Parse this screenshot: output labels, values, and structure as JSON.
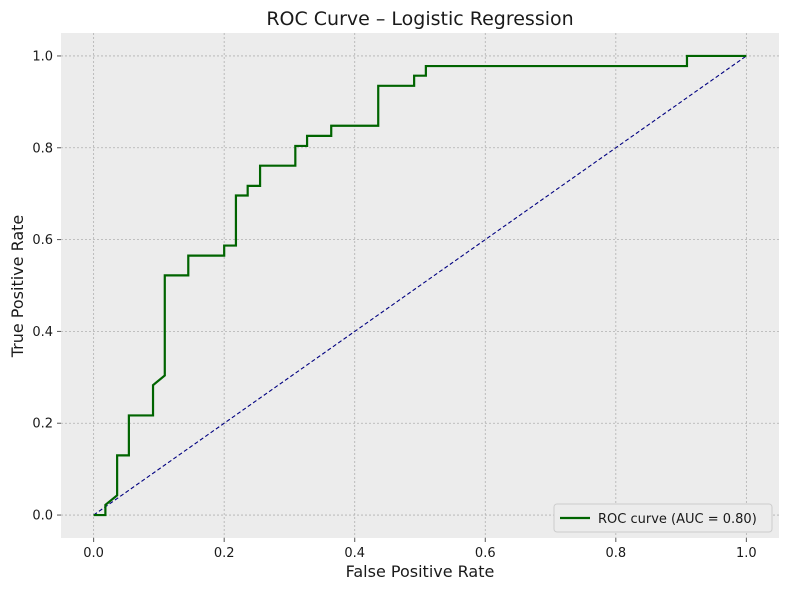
{
  "chart_data": {
    "type": "line",
    "title": "ROC Curve – Logistic Regression",
    "xlabel": "False Positive Rate",
    "ylabel": "True Positive Rate",
    "xlim": [
      -0.05,
      1.05
    ],
    "ylim": [
      -0.05,
      1.05
    ],
    "xticks": [
      "0.0",
      "0.2",
      "0.4",
      "0.6",
      "0.8",
      "1.0"
    ],
    "yticks": [
      "0.0",
      "0.2",
      "0.4",
      "0.6",
      "0.8",
      "1.0"
    ],
    "grid": true,
    "legend_position": "lower right",
    "colors": {
      "plot_background": "#ececec",
      "grid": "#b0b0b0",
      "roc": "#006400",
      "diagonal": "#000080",
      "legend_border": "#cccccc"
    },
    "series": [
      {
        "name": "ROC curve (AUC = 0.80)",
        "style": "solid",
        "color": "#006400",
        "x": [
          0.0,
          0.0,
          0.018,
          0.018,
          0.036,
          0.036,
          0.054,
          0.054,
          0.091,
          0.091,
          0.109,
          0.109,
          0.145,
          0.145,
          0.2,
          0.2,
          0.218,
          0.218,
          0.236,
          0.236,
          0.255,
          0.255,
          0.309,
          0.309,
          0.327,
          0.327,
          0.364,
          0.364,
          0.436,
          0.436,
          0.491,
          0.491,
          0.509,
          0.509,
          0.909,
          0.909,
          1.0
        ],
        "y": [
          0.0,
          0.0,
          0.0,
          0.022,
          0.043,
          0.13,
          0.13,
          0.217,
          0.217,
          0.283,
          0.304,
          0.522,
          0.522,
          0.565,
          0.565,
          0.587,
          0.587,
          0.696,
          0.696,
          0.717,
          0.717,
          0.761,
          0.761,
          0.804,
          0.804,
          0.826,
          0.826,
          0.848,
          0.848,
          0.935,
          0.935,
          0.957,
          0.957,
          0.978,
          0.978,
          1.0,
          1.0
        ]
      },
      {
        "name": "",
        "style": "dashed",
        "color": "#000080",
        "x": [
          0.0,
          1.0
        ],
        "y": [
          0.0,
          1.0
        ]
      }
    ]
  }
}
